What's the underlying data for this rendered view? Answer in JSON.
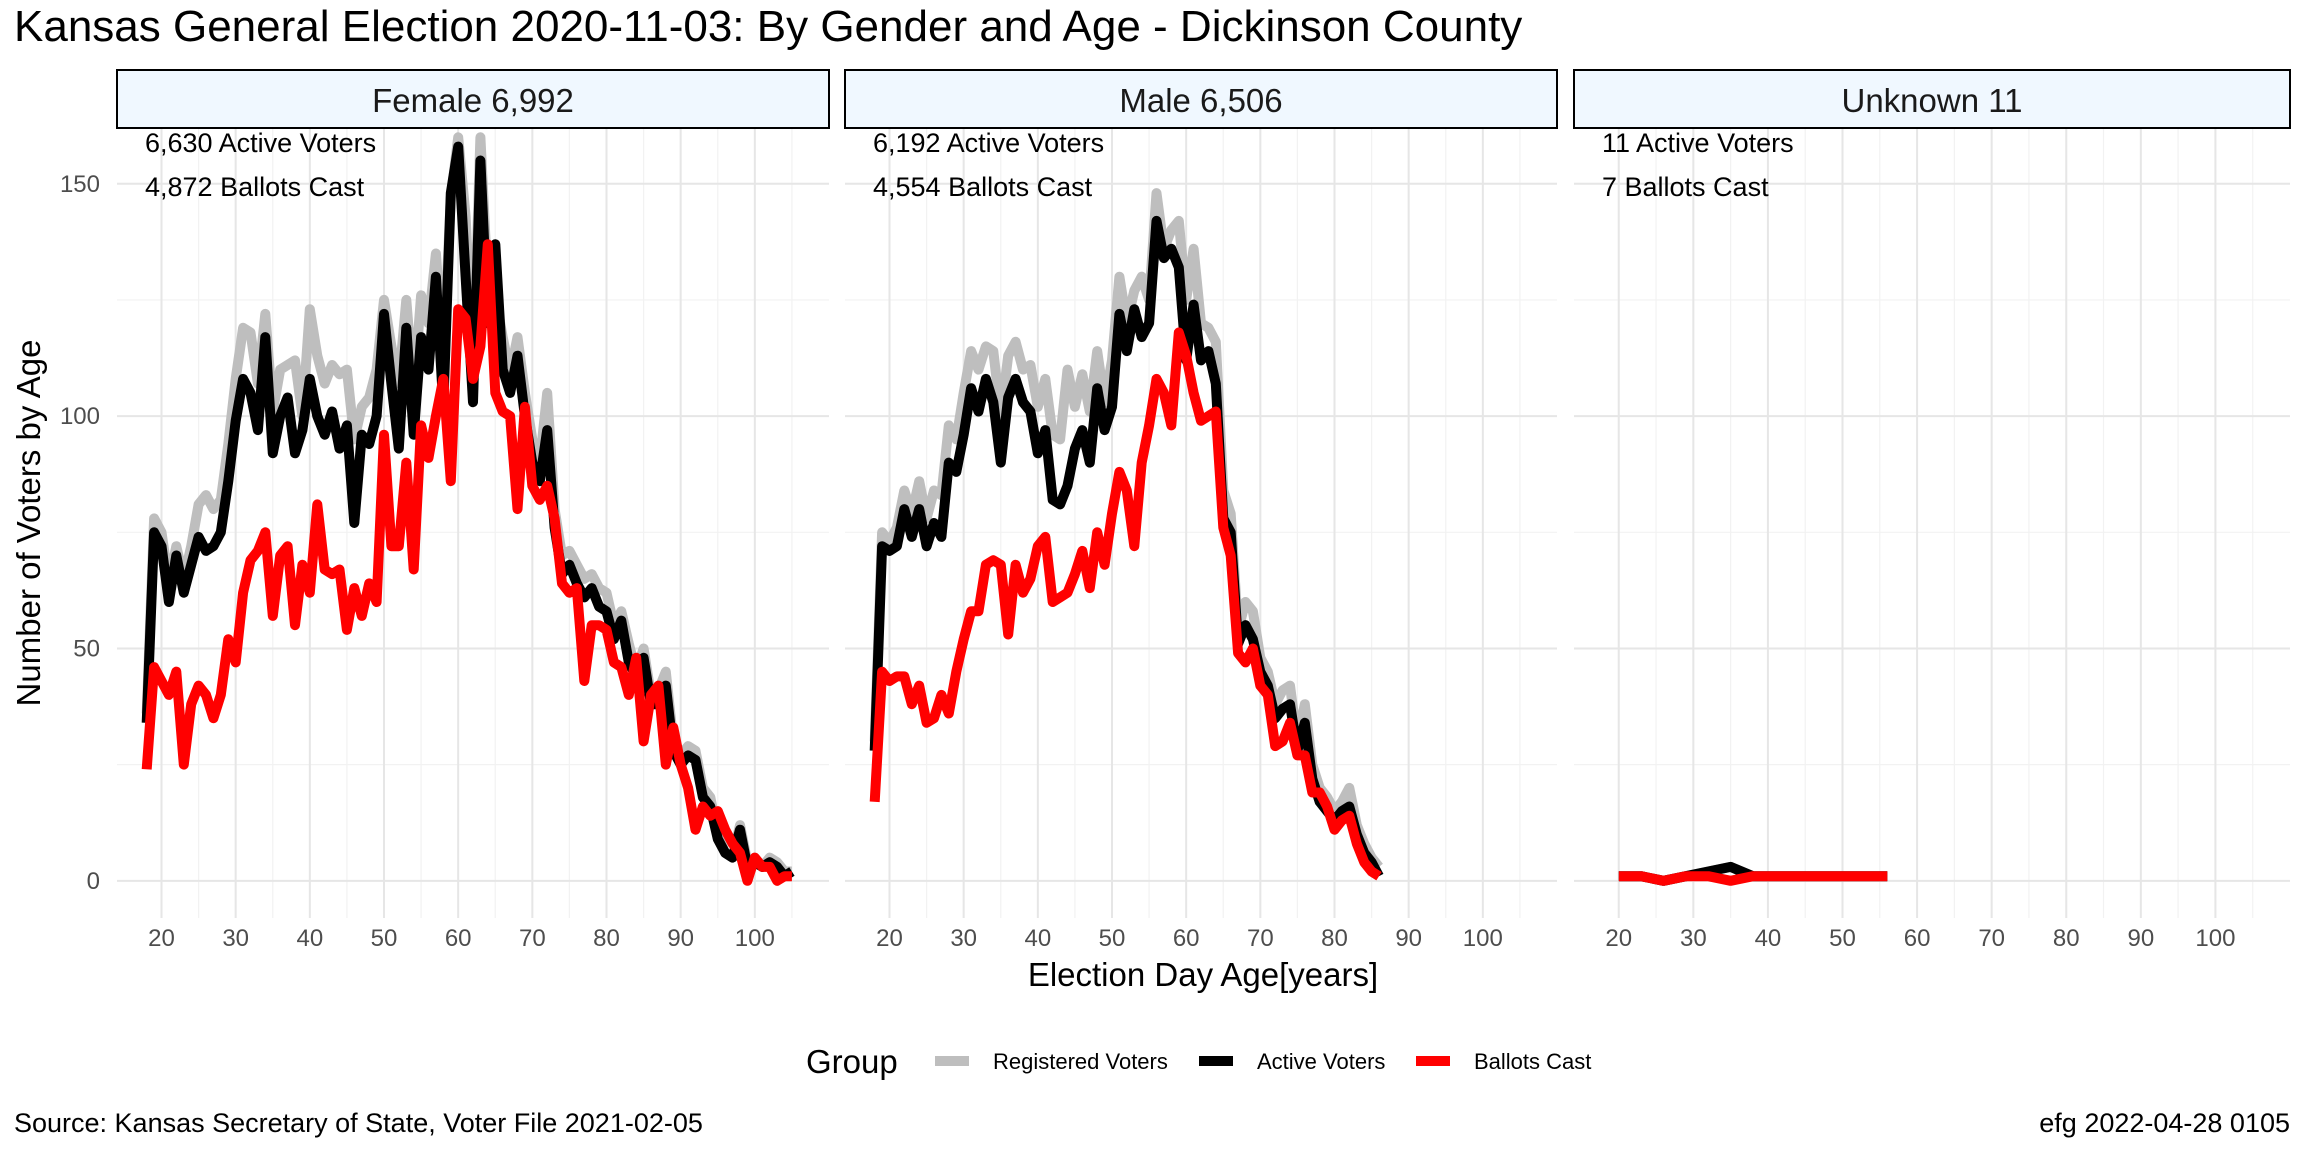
{
  "title": "Kansas General Election 2020-11-03:  By Gender and Age - Dickinson County",
  "caption_left": "Source:  Kansas Secretary of State, Voter File  2021-02-05",
  "caption_right": "efg 2022-04-28 0105",
  "chart_data": {
    "type": "line",
    "ylabel": "Number of Voters by Age",
    "xlabel": "Election Day Age[years]",
    "xlim": [
      14,
      110
    ],
    "ylim": [
      -8,
      162
    ],
    "xticks": [
      20,
      30,
      40,
      50,
      60,
      70,
      80,
      90,
      100
    ],
    "yticks": [
      0,
      50,
      100,
      150
    ],
    "grid": true,
    "legend": {
      "title": "Group",
      "position": "bottom",
      "items": [
        {
          "name": "Registered Voters",
          "color": "#BEBEBE"
        },
        {
          "name": "Active Voters",
          "color": "#000000"
        },
        {
          "name": "Ballots Cast",
          "color": "#FF0000"
        }
      ]
    },
    "panels": [
      {
        "strip": "Female 6,992",
        "annotations": [
          "6,630 Active Voters",
          "4,872 Ballots Cast"
        ],
        "x": [
          18,
          19,
          20,
          21,
          22,
          23,
          24,
          25,
          26,
          27,
          28,
          29,
          30,
          31,
          32,
          33,
          34,
          35,
          36,
          37,
          38,
          39,
          40,
          41,
          42,
          43,
          44,
          45,
          46,
          47,
          48,
          49,
          50,
          51,
          52,
          53,
          54,
          55,
          56,
          57,
          58,
          59,
          60,
          61,
          62,
          63,
          64,
          65,
          66,
          67,
          68,
          69,
          70,
          71,
          72,
          73,
          74,
          75,
          76,
          77,
          78,
          79,
          80,
          81,
          82,
          83,
          84,
          85,
          86,
          87,
          88,
          89,
          90,
          91,
          92,
          93,
          94,
          95,
          96,
          97,
          98,
          99,
          100,
          101,
          102,
          103,
          104,
          105
        ],
        "series": [
          {
            "name": "Registered Voters",
            "color": "#BEBEBE",
            "values": [
              36,
              78,
              75,
              64,
              72,
              65,
              72,
              81,
              83,
              80,
              82,
              94,
              108,
              119,
              118,
              107,
              122,
              101,
              110,
              111,
              112,
              100,
              123,
              113,
              107,
              111,
              109,
              110,
              95,
              102,
              104,
              110,
              125,
              115,
              107,
              125,
              105,
              126,
              120,
              135,
              113,
              147,
              160,
              143,
              110,
              160,
              128,
              126,
              117,
              109,
              117,
              105,
              95,
              90,
              105,
              80,
              70,
              71,
              68,
              65,
              66,
              63,
              62,
              55,
              58,
              51,
              45,
              50,
              40,
              41,
              45,
              30,
              27,
              29,
              28,
              20,
              18,
              10,
              6,
              5,
              12,
              4,
              5,
              3,
              5,
              4,
              2,
              2
            ]
          },
          {
            "name": "Active Voters",
            "color": "#000000",
            "values": [
              34,
              75,
              72,
              60,
              70,
              62,
              68,
              74,
              71,
              72,
              75,
              86,
              99,
              108,
              105,
              97,
              117,
              92,
              100,
              104,
              92,
              97,
              108,
              100,
              96,
              101,
              93,
              98,
              77,
              96,
              94,
              100,
              122,
              107,
              93,
              119,
              96,
              117,
              110,
              130,
              102,
              148,
              158,
              130,
              103,
              155,
              120,
              137,
              110,
              105,
              113,
              100,
              90,
              86,
              97,
              76,
              66,
              68,
              64,
              61,
              63,
              59,
              58,
              52,
              56,
              47,
              44,
              48,
              38,
              38,
              42,
              28,
              25,
              27,
              26,
              18,
              16,
              9,
              6,
              5,
              11,
              3,
              4,
              3,
              4,
              3,
              1,
              2
            ]
          },
          {
            "name": "Ballots Cast",
            "color": "#FF0000",
            "values": [
              24,
              46,
              43,
              40,
              45,
              25,
              38,
              42,
              40,
              35,
              40,
              52,
              47,
              62,
              69,
              71,
              75,
              57,
              70,
              72,
              55,
              68,
              62,
              81,
              67,
              66,
              67,
              54,
              63,
              57,
              64,
              60,
              96,
              72,
              72,
              90,
              67,
              98,
              91,
              100,
              108,
              86,
              123,
              121,
              108,
              115,
              137,
              105,
              101,
              100,
              80,
              102,
              85,
              82,
              85,
              78,
              64,
              62,
              63,
              43,
              55,
              55,
              54,
              47,
              46,
              40,
              48,
              30,
              40,
              42,
              25,
              33,
              25,
              20,
              11,
              16,
              14,
              15,
              11,
              8,
              6,
              0,
              5,
              3,
              3,
              0,
              1,
              1
            ]
          }
        ]
      },
      {
        "strip": "Male 6,506",
        "annotations": [
          "6,192 Active Voters",
          "4,554 Ballots Cast"
        ],
        "x": [
          18,
          19,
          20,
          21,
          22,
          23,
          24,
          25,
          26,
          27,
          28,
          29,
          30,
          31,
          32,
          33,
          34,
          35,
          36,
          37,
          38,
          39,
          40,
          41,
          42,
          43,
          44,
          45,
          46,
          47,
          48,
          49,
          50,
          51,
          52,
          53,
          54,
          55,
          56,
          57,
          58,
          59,
          60,
          61,
          62,
          63,
          64,
          65,
          66,
          67,
          68,
          69,
          70,
          71,
          72,
          73,
          74,
          75,
          76,
          77,
          78,
          79,
          80,
          81,
          82,
          83,
          84,
          85,
          86,
          87,
          88,
          89,
          90,
          91,
          92,
          93,
          94,
          95,
          96,
          97,
          98,
          99,
          100
        ],
        "series": [
          {
            "name": "Registered Voters",
            "color": "#BEBEBE",
            "values": [
              30,
              75,
              73,
              76,
              84,
              79,
              86,
              78,
              84,
              83,
              98,
              95,
              105,
              114,
              110,
              115,
              114,
              100,
              113,
              116,
              110,
              111,
              102,
              108,
              96,
              95,
              110,
              102,
              109,
              101,
              114,
              103,
              112,
              130,
              120,
              127,
              130,
              125,
              148,
              136,
              140,
              142,
              125,
              136,
              120,
              119,
              116,
              84,
              79,
              54,
              60,
              58,
              48,
              45,
              38,
              41,
              42,
              30,
              38,
              25,
              20,
              18,
              15,
              17,
              20,
              12,
              8,
              5,
              3
            ]
          },
          {
            "name": "Active Voters",
            "color": "#000000",
            "values": [
              28,
              72,
              71,
              72,
              80,
              74,
              80,
              72,
              77,
              74,
              90,
              88,
              96,
              106,
              101,
              108,
              103,
              90,
              104,
              108,
              103,
              101,
              92,
              97,
              82,
              81,
              85,
              93,
              97,
              90,
              106,
              97,
              102,
              122,
              114,
              123,
              117,
              120,
              142,
              134,
              136,
              132,
              112,
              124,
              112,
              114,
              107,
              78,
              75,
              51,
              55,
              52,
              45,
              42,
              35,
              37,
              38,
              28,
              34,
              22,
              17,
              15,
              13,
              15,
              16,
              10,
              6,
              4,
              1
            ]
          },
          {
            "name": "Ballots Cast",
            "color": "#FF0000",
            "values": [
              17,
              45,
              43,
              44,
              44,
              38,
              42,
              34,
              35,
              40,
              36,
              45,
              52,
              58,
              58,
              68,
              69,
              68,
              53,
              68,
              62,
              65,
              72,
              74,
              60,
              61,
              62,
              66,
              71,
              63,
              75,
              68,
              79,
              88,
              84,
              72,
              90,
              98,
              108,
              105,
              98,
              118,
              113,
              105,
              99,
              100,
              101,
              76,
              70,
              49,
              47,
              50,
              42,
              40,
              29,
              30,
              34,
              27,
              27,
              19,
              19,
              16,
              11,
              13,
              14,
              8,
              4,
              2,
              1
            ]
          }
        ]
      },
      {
        "strip": "Unknown 11",
        "annotations": [
          "11 Active Voters",
          "7 Ballots Cast"
        ],
        "x": [
          20,
          23,
          26,
          29,
          32,
          35,
          38,
          41,
          44,
          47,
          50,
          53,
          56
        ],
        "series": [
          {
            "name": "Registered Voters",
            "color": "#BEBEBE",
            "values": [
              1,
              1,
              0,
              1,
              2,
              3,
              1,
              1,
              1,
              1,
              1,
              1,
              1
            ]
          },
          {
            "name": "Active Voters",
            "color": "#000000",
            "values": [
              1,
              1,
              0,
              1,
              2,
              3,
              1,
              1,
              1,
              1,
              1,
              1,
              1
            ]
          },
          {
            "name": "Ballots Cast",
            "color": "#FF0000",
            "values": [
              1,
              1,
              0,
              1,
              1,
              0,
              1,
              1,
              1,
              1,
              1,
              1,
              1
            ]
          }
        ]
      }
    ]
  }
}
